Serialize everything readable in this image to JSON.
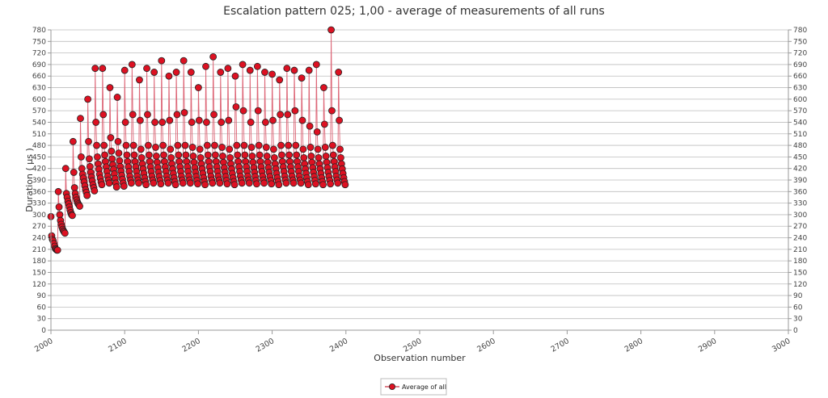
{
  "chart_data": {
    "type": "line",
    "title": "Escalation pattern 025; 1,00 - average of measurements of all runs",
    "xlabel": "Observation number",
    "ylabel": "Duration ( µs )",
    "xlim": [
      2000,
      3000
    ],
    "ylim": [
      0,
      780
    ],
    "x_ticks": [
      2000,
      2100,
      2200,
      2300,
      2400,
      2500,
      2600,
      2700,
      2800,
      2900,
      3000
    ],
    "y_ticks": [
      0,
      30,
      60,
      90,
      120,
      150,
      180,
      210,
      240,
      270,
      300,
      330,
      360,
      390,
      420,
      450,
      480,
      510,
      540,
      570,
      600,
      630,
      660,
      690,
      720,
      750,
      780
    ],
    "grid": true,
    "legend": "bottom-center",
    "series": [
      {
        "name": "Average of all",
        "color": "#cc0000",
        "marker_fill": "#dd1122",
        "marker_stroke": "#222222",
        "line_color": "#dd6677",
        "x_start": 2000,
        "x_step": 1,
        "values": [
          295,
          245,
          236,
          232,
          225,
          218,
          212,
          210,
          208,
          208,
          360,
          320,
          300,
          285,
          275,
          268,
          262,
          258,
          255,
          252,
          420,
          355,
          345,
          335,
          328,
          320,
          312,
          305,
          300,
          298,
          490,
          410,
          370,
          355,
          345,
          338,
          332,
          328,
          325,
          322,
          550,
          450,
          420,
          405,
          395,
          385,
          375,
          365,
          358,
          350,
          600,
          490,
          445,
          425,
          410,
          398,
          388,
          378,
          370,
          362,
          680,
          540,
          480,
          450,
          432,
          418,
          405,
          395,
          385,
          378,
          680,
          560,
          480,
          455,
          438,
          424,
          412,
          400,
          390,
          382,
          630,
          500,
          465,
          445,
          430,
          418,
          406,
          394,
          382,
          372,
          605,
          490,
          460,
          440,
          425,
          413,
          402,
          392,
          382,
          374,
          675,
          540,
          480,
          455,
          438,
          424,
          412,
          400,
          390,
          382,
          690,
          560,
          480,
          455,
          438,
          424,
          412,
          400,
          390,
          382,
          650,
          545,
          470,
          448,
          432,
          419,
          407,
          396,
          386,
          378,
          680,
          560,
          480,
          455,
          438,
          424,
          412,
          400,
          390,
          382,
          670,
          540,
          475,
          452,
          436,
          422,
          410,
          399,
          389,
          380,
          700,
          540,
          480,
          455,
          438,
          424,
          412,
          400,
          390,
          382,
          660,
          545,
          470,
          448,
          432,
          419,
          407,
          396,
          386,
          378,
          670,
          560,
          480,
          455,
          438,
          424,
          412,
          400,
          390,
          382,
          700,
          565,
          480,
          455,
          438,
          424,
          412,
          400,
          390,
          382,
          670,
          540,
          475,
          452,
          436,
          422,
          410,
          399,
          389,
          380,
          630,
          545,
          470,
          448,
          432,
          419,
          407,
          396,
          386,
          378,
          685,
          540,
          480,
          455,
          438,
          424,
          412,
          400,
          390,
          382,
          710,
          560,
          480,
          455,
          438,
          424,
          412,
          400,
          390,
          382,
          670,
          540,
          475,
          452,
          436,
          422,
          410,
          399,
          389,
          380,
          680,
          545,
          470,
          448,
          432,
          419,
          407,
          396,
          386,
          378,
          660,
          580,
          480,
          455,
          438,
          424,
          412,
          400,
          390,
          382,
          690,
          570,
          480,
          455,
          438,
          424,
          412,
          400,
          390,
          382,
          675,
          540,
          475,
          452,
          436,
          422,
          410,
          399,
          389,
          380,
          685,
          570,
          480,
          455,
          438,
          424,
          412,
          400,
          390,
          382,
          670,
          540,
          475,
          452,
          436,
          422,
          410,
          399,
          389,
          380,
          665,
          545,
          470,
          448,
          432,
          419,
          407,
          396,
          386,
          378,
          650,
          560,
          480,
          455,
          438,
          424,
          412,
          400,
          390,
          382,
          680,
          560,
          480,
          455,
          438,
          424,
          412,
          400,
          390,
          382,
          675,
          570,
          480,
          455,
          438,
          424,
          412,
          400,
          390,
          382,
          655,
          545,
          470,
          448,
          432,
          419,
          407,
          396,
          386,
          378,
          675,
          530,
          475,
          452,
          436,
          422,
          410,
          399,
          389,
          380,
          690,
          515,
          470,
          448,
          432,
          419,
          407,
          396,
          386,
          378,
          630,
          535,
          475,
          452,
          436,
          422,
          410,
          399,
          389,
          380,
          780,
          570,
          480,
          455,
          438,
          424,
          412,
          400,
          390,
          382,
          670,
          545,
          470,
          448,
          432,
          419,
          407,
          396,
          386,
          378
        ]
      }
    ]
  }
}
